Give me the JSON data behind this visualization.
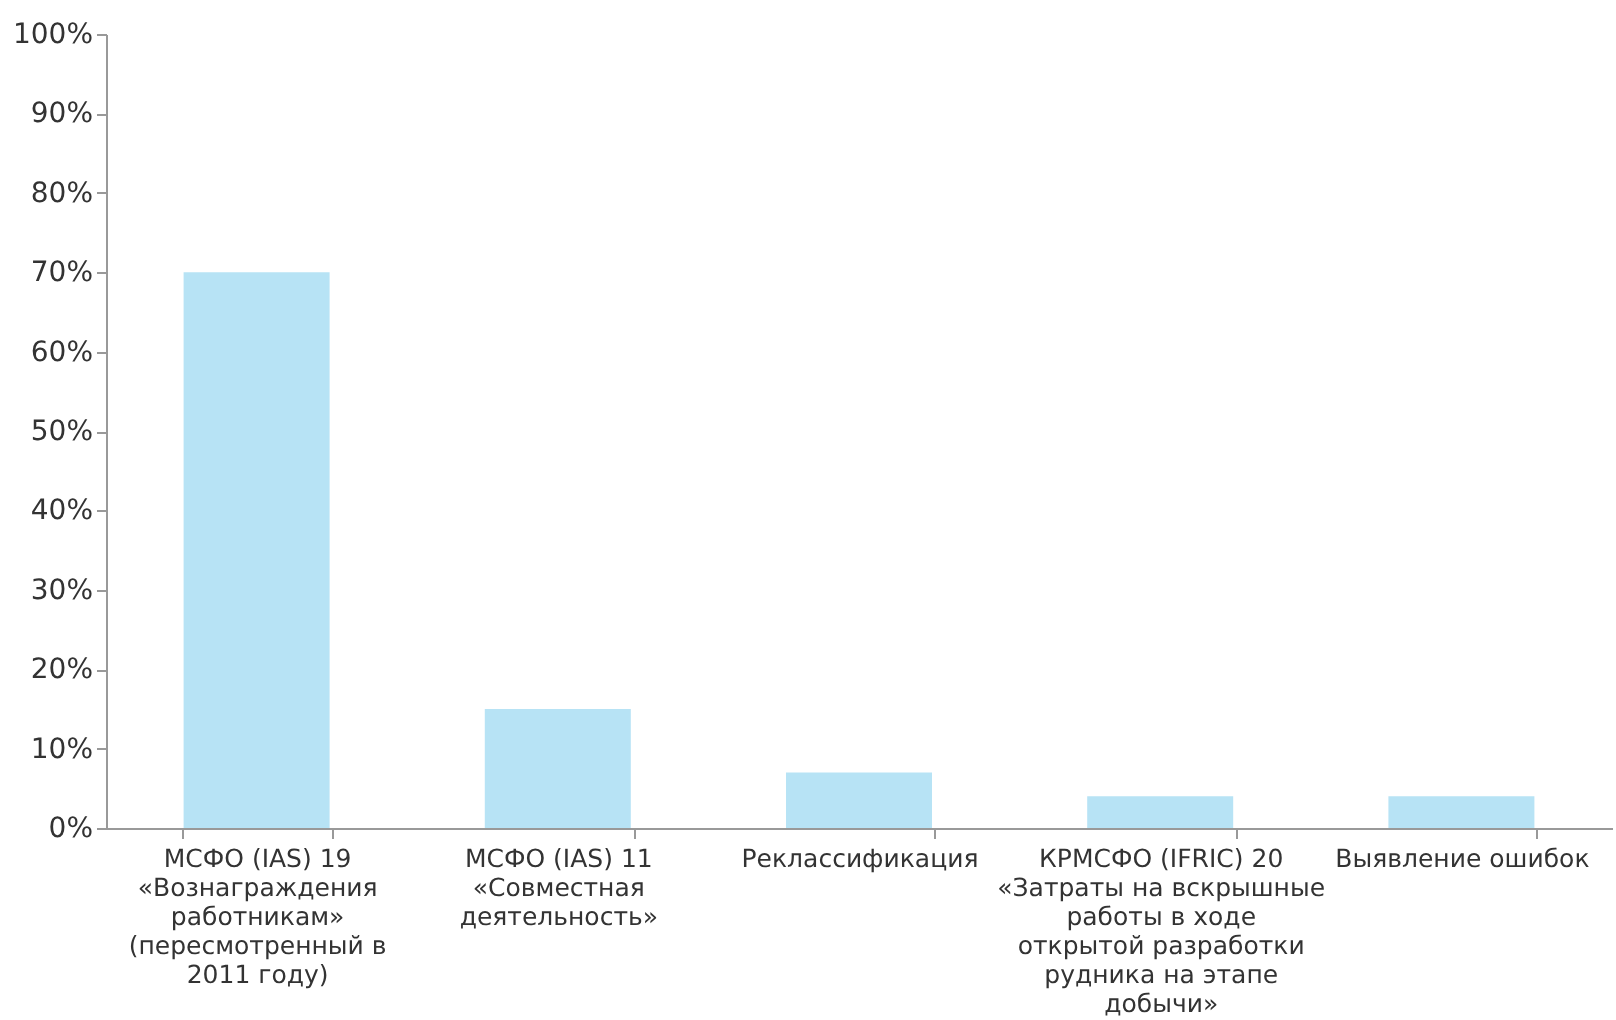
{
  "chart_data": {
    "type": "bar",
    "categories": [
      "МСФО (IAS) 19 «Вознаграждения работникам» (пересмотренный в 2011 году)",
      "МСФО (IAS) 11 «Совместная деятельность»",
      "Реклассификация",
      "КРМСФО (IFRIC) 20 «Затраты на вскрышные работы в ходе открытой разработки рудника на этапе добычи»",
      "Выявление ошибок"
    ],
    "values": [
      70,
      15,
      7,
      4,
      4
    ],
    "color": "#b7e3f5",
    "ylim": [
      0,
      100
    ],
    "yticks": [
      {
        "value": 0,
        "label": "0%"
      },
      {
        "value": 10,
        "label": "10%"
      },
      {
        "value": 20,
        "label": "20%"
      },
      {
        "value": 30,
        "label": "30%"
      },
      {
        "value": 40,
        "label": "40%"
      },
      {
        "value": 50,
        "label": "50%"
      },
      {
        "value": 60,
        "label": "60%"
      },
      {
        "value": 70,
        "label": "70%"
      },
      {
        "value": 80,
        "label": "80%"
      },
      {
        "value": 90,
        "label": "90%"
      },
      {
        "value": 100,
        "label": "100%"
      }
    ],
    "grid": false
  }
}
